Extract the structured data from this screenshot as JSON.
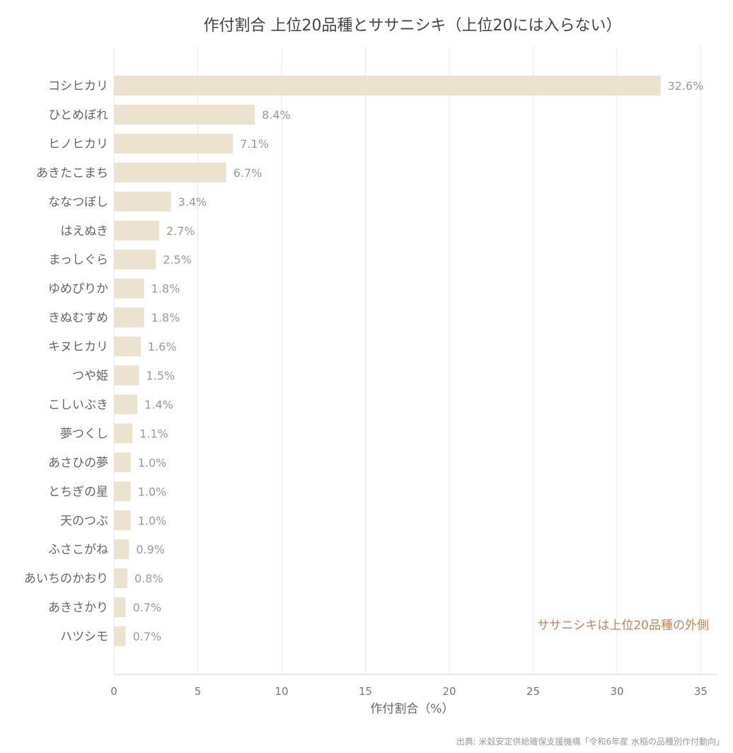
{
  "chart_data": {
    "type": "bar",
    "orientation": "horizontal",
    "title": "作付割合 上位20品種とササニシキ（上位20には入らない）",
    "xlabel": "作付割合（%）",
    "ylabel": "",
    "xlim": [
      0,
      36
    ],
    "xticks": [
      0,
      5,
      10,
      15,
      20,
      25,
      30,
      35
    ],
    "grid": "vertical",
    "bar_color": "#ebe2cf",
    "value_suffix": "%",
    "categories": [
      "コシヒカリ",
      "ひとめぼれ",
      "ヒノヒカリ",
      "あきたこまち",
      "ななつぼし",
      "はえぬき",
      "まっしぐら",
      "ゆめぴりか",
      "きぬむすめ",
      "キヌヒカリ",
      "つや姫",
      "こしいぶき",
      "夢つくし",
      "あさひの夢",
      "とちぎの星",
      "天のつぶ",
      "ふさこがね",
      "あいちのかおり",
      "あきさかり",
      "ハツシモ"
    ],
    "values": [
      32.6,
      8.4,
      7.1,
      6.7,
      3.4,
      2.7,
      2.5,
      1.8,
      1.8,
      1.6,
      1.5,
      1.4,
      1.1,
      1.0,
      1.0,
      1.0,
      0.9,
      0.8,
      0.7,
      0.7
    ],
    "annotation": {
      "text": "ササニシキは上位20品種の外側",
      "color": "#c0845a"
    },
    "source": "出典: 米穀安定供給確保支援機構「令和6年産 水稲の品種別作付動向」"
  }
}
